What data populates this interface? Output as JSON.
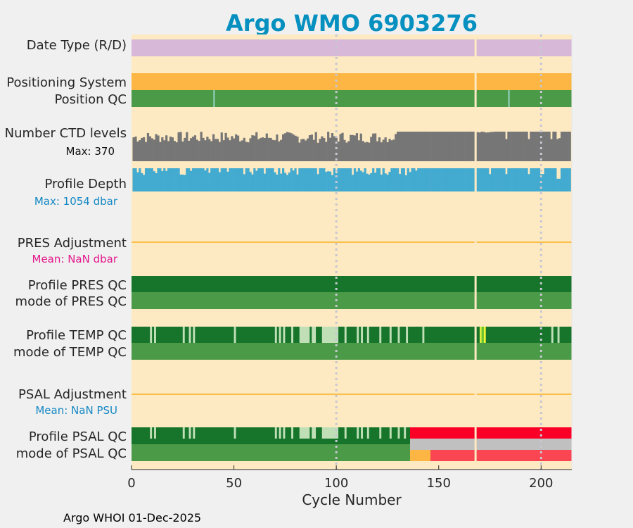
{
  "chart_data": {
    "type": "bar",
    "title": "Argo WMO 6903276",
    "xlabel": "Cycle Number",
    "xlim": [
      0,
      215
    ],
    "xticks": [
      0,
      50,
      100,
      150,
      200
    ],
    "footer": "Argo WHOI 01-Dec-2025",
    "gap_cycle": 168,
    "rows": [
      {
        "label": "Date Type (R/D)",
        "color": "#d7b8d8"
      },
      {
        "label": "Positioning System",
        "color": "#fdb643"
      },
      {
        "label": "Position QC",
        "color": "#4a9a48",
        "marks": [
          {
            "cycle": 40,
            "color": "#a6dbd6"
          },
          {
            "cycle": 184,
            "color": "#a6dbd6"
          }
        ]
      },
      {
        "label": "Number CTD levels",
        "sublabel": "Max: 370",
        "max": 370,
        "color": "#767676"
      },
      {
        "label": "Profile Depth",
        "sublabel": "Max: 1054 dbar",
        "max": 1054,
        "color": "#43aad0"
      },
      {
        "label": "PRES Adjustment",
        "sublabel": "Mean:  NaN dbar"
      },
      {
        "label": "Profile PRES QC",
        "color": "#17752b"
      },
      {
        "label": "mode of PRES QC",
        "color": "#4a9a48"
      },
      {
        "label": "Profile TEMP QC",
        "color": "#17752b"
      },
      {
        "label": "mode of TEMP QC",
        "color": "#4a9a48"
      },
      {
        "label": "PSAL Adjustment",
        "sublabel": "Mean:  NaN PSU"
      },
      {
        "label": "Profile PSAL QC",
        "color": "#17752b"
      },
      {
        "label": "mode of PSAL QC",
        "color": "#4a9a48"
      }
    ],
    "temp_qc_segments": [
      {
        "start": 9,
        "end": 10,
        "color": "#c1dfb7"
      },
      {
        "start": 11,
        "end": 12,
        "color": "#c1dfb7"
      },
      {
        "start": 25,
        "end": 26,
        "color": "#c1dfb7"
      },
      {
        "start": 28,
        "end": 29,
        "color": "#c1dfb7"
      },
      {
        "start": 30,
        "end": 31,
        "color": "#c1dfb7"
      },
      {
        "start": 50,
        "end": 51,
        "color": "#c1dfb7"
      },
      {
        "start": 70,
        "end": 71,
        "color": "#c1dfb7"
      },
      {
        "start": 72,
        "end": 73,
        "color": "#c1dfb7"
      },
      {
        "start": 74,
        "end": 75,
        "color": "#c1dfb7"
      },
      {
        "start": 78,
        "end": 79,
        "color": "#c1dfb7"
      },
      {
        "start": 82,
        "end": 87,
        "color": "#c1dfb7"
      },
      {
        "start": 88,
        "end": 90,
        "color": "#c1dfb7"
      },
      {
        "start": 93,
        "end": 101,
        "color": "#c1dfb7"
      },
      {
        "start": 104,
        "end": 105,
        "color": "#c1dfb7"
      },
      {
        "start": 110,
        "end": 111,
        "color": "#c1dfb7"
      },
      {
        "start": 112,
        "end": 113,
        "color": "#c1dfb7"
      },
      {
        "start": 115,
        "end": 116,
        "color": "#c1dfb7"
      },
      {
        "start": 121,
        "end": 122,
        "color": "#c1dfb7"
      },
      {
        "start": 126,
        "end": 127,
        "color": "#c1dfb7"
      },
      {
        "start": 130,
        "end": 131,
        "color": "#c1dfb7"
      },
      {
        "start": 134,
        "end": 135,
        "color": "#c1dfb7"
      },
      {
        "start": 142,
        "end": 143,
        "color": "#c1dfb7"
      },
      {
        "start": 170,
        "end": 171,
        "color": "#d8f042"
      },
      {
        "start": 171,
        "end": 172,
        "color": "#66c530"
      },
      {
        "start": 172,
        "end": 173,
        "color": "#eef535"
      },
      {
        "start": 205,
        "end": 206,
        "color": "#c1dfb7"
      },
      {
        "start": 208,
        "end": 209,
        "color": "#c1dfb7"
      }
    ],
    "psal_qc_segments": [
      {
        "start": 9,
        "end": 10,
        "color": "#c1dfb7"
      },
      {
        "start": 11,
        "end": 12,
        "color": "#c1dfb7"
      },
      {
        "start": 25,
        "end": 26,
        "color": "#c1dfb7"
      },
      {
        "start": 28,
        "end": 29,
        "color": "#c1dfb7"
      },
      {
        "start": 30,
        "end": 31,
        "color": "#c1dfb7"
      },
      {
        "start": 50,
        "end": 51,
        "color": "#c1dfb7"
      },
      {
        "start": 70,
        "end": 71,
        "color": "#c1dfb7"
      },
      {
        "start": 72,
        "end": 73,
        "color": "#c1dfb7"
      },
      {
        "start": 74,
        "end": 75,
        "color": "#c1dfb7"
      },
      {
        "start": 78,
        "end": 79,
        "color": "#c1dfb7"
      },
      {
        "start": 82,
        "end": 87,
        "color": "#c1dfb7"
      },
      {
        "start": 88,
        "end": 90,
        "color": "#c1dfb7"
      },
      {
        "start": 93,
        "end": 101,
        "color": "#c1dfb7"
      },
      {
        "start": 104,
        "end": 105,
        "color": "#c1dfb7"
      },
      {
        "start": 110,
        "end": 111,
        "color": "#c1dfb7"
      },
      {
        "start": 112,
        "end": 113,
        "color": "#c1dfb7"
      },
      {
        "start": 115,
        "end": 116,
        "color": "#c1dfb7"
      },
      {
        "start": 121,
        "end": 122,
        "color": "#c1dfb7"
      },
      {
        "start": 126,
        "end": 127,
        "color": "#c1dfb7"
      },
      {
        "start": 130,
        "end": 131,
        "color": "#c1dfb7"
      },
      {
        "start": 133,
        "end": 134,
        "color": "#c1dfb7"
      },
      {
        "start": 136,
        "end": 215,
        "color": "#fb0026"
      }
    ],
    "psal_mode_segments": [
      {
        "start": 136,
        "end": 215,
        "color": "#c0c0c0",
        "half": "top"
      },
      {
        "start": 136,
        "end": 146,
        "color": "#fdb643",
        "half": "bottom"
      },
      {
        "start": 146,
        "end": 215,
        "color": "#fa4552",
        "half": "bottom"
      }
    ]
  },
  "colors": {
    "background": "#f0f0f0",
    "plot": "#fde9c2",
    "adjustment_line": "#fbbf4a",
    "grid": "#c7c7d2",
    "gap": "#fde9c2",
    "ctd_sublabel": "#111111",
    "depth_sublabel": "#1488c4",
    "pres_sublabel": "#e3188c",
    "psal_sublabel": "#1488c4"
  }
}
